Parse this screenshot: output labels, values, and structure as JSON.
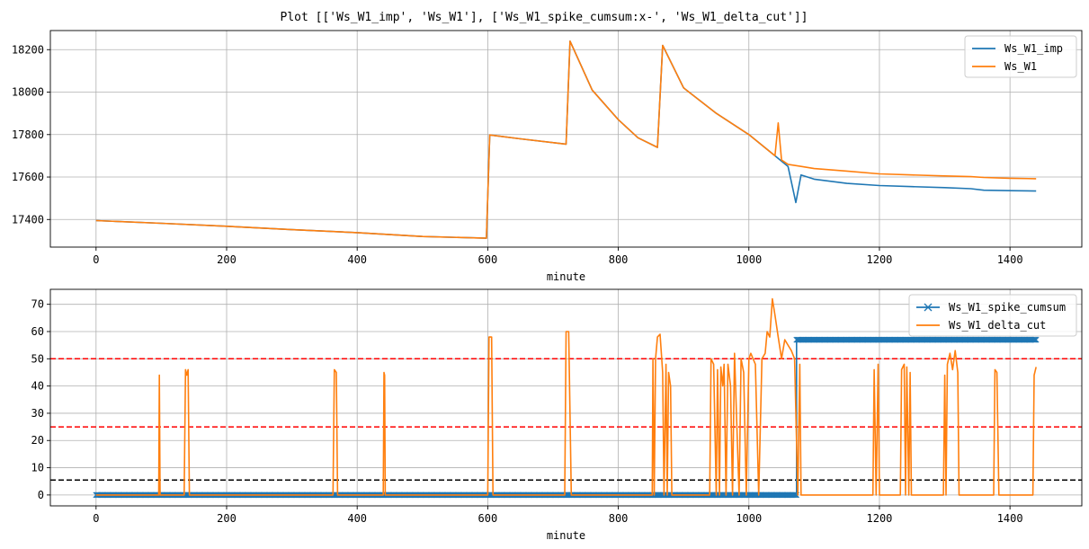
{
  "figure": {
    "title": "Plot [['Ws_W1_imp', 'Ws_W1'], ['Ws_W1_spike_cumsum:x-', 'Ws_W1_delta_cut']]"
  },
  "chart_data": [
    {
      "type": "line",
      "xlabel": "minute",
      "ylabel": "",
      "xlim": [
        -70,
        1510
      ],
      "ylim": [
        17270,
        18290
      ],
      "xticks": [
        0,
        200,
        400,
        600,
        800,
        1000,
        1200,
        1400
      ],
      "yticks": [
        17400,
        17600,
        17800,
        18000,
        18200
      ],
      "grid": true,
      "legend": "top-right",
      "series": [
        {
          "name": "Ws_W1_imp",
          "color": "#1f77b4",
          "x": [
            0,
            100,
            200,
            300,
            400,
            500,
            598,
            603,
            650,
            720,
            726,
            760,
            800,
            830,
            860,
            868,
            900,
            950,
            1000,
            1040,
            1060,
            1072,
            1080,
            1100,
            1150,
            1200,
            1250,
            1300,
            1340,
            1360,
            1400,
            1440
          ],
          "y": [
            17395,
            17382,
            17368,
            17352,
            17338,
            17320,
            17312,
            17798,
            17780,
            17755,
            18240,
            18010,
            17870,
            17785,
            17740,
            18220,
            18020,
            17900,
            17800,
            17700,
            17650,
            17480,
            17610,
            17590,
            17570,
            17560,
            17555,
            17550,
            17545,
            17538,
            17536,
            17534
          ]
        },
        {
          "name": "Ws_W1",
          "color": "#ff7f0e",
          "x": [
            0,
            100,
            200,
            300,
            400,
            500,
            598,
            603,
            650,
            720,
            726,
            760,
            800,
            830,
            860,
            868,
            900,
            950,
            1000,
            1040,
            1045,
            1050,
            1060,
            1080,
            1100,
            1150,
            1200,
            1250,
            1300,
            1340,
            1360,
            1400,
            1440
          ],
          "y": [
            17395,
            17382,
            17368,
            17352,
            17338,
            17320,
            17312,
            17798,
            17780,
            17755,
            18240,
            18010,
            17870,
            17785,
            17740,
            18220,
            18020,
            17900,
            17800,
            17700,
            17855,
            17680,
            17660,
            17650,
            17640,
            17628,
            17615,
            17610,
            17605,
            17602,
            17598,
            17594,
            17592
          ]
        }
      ]
    },
    {
      "type": "line",
      "xlabel": "minute",
      "ylabel": "",
      "xlim": [
        -70,
        1510
      ],
      "ylim": [
        -4,
        75.5
      ],
      "xticks": [
        0,
        200,
        400,
        600,
        800,
        1000,
        1200,
        1400
      ],
      "yticks": [
        0,
        10,
        20,
        30,
        40,
        50,
        60,
        70
      ],
      "grid": true,
      "legend": "top-right",
      "hlines": [
        {
          "y": 50,
          "color": "#ff0000"
        },
        {
          "y": 25,
          "color": "#ff0000"
        },
        {
          "y": 5.5,
          "color": "#000000"
        }
      ],
      "series": [
        {
          "name": "Ws_W1_spike_cumsum",
          "color": "#1f77b4",
          "marker": "x",
          "x": [
            0,
            1073,
            1073,
            1440
          ],
          "y": [
            0,
            0,
            57,
            57
          ]
        },
        {
          "name": "Ws_W1_delta_cut",
          "color": "#ff7f0e",
          "x": [
            0,
            96,
            97,
            98,
            135,
            137,
            139,
            141,
            143,
            363,
            365,
            368,
            370,
            440,
            441,
            442,
            443,
            600,
            602,
            606,
            608,
            718,
            720,
            724,
            728,
            852,
            853,
            855,
            857,
            860,
            864,
            868,
            870,
            873,
            875,
            877,
            880,
            882,
            940,
            942,
            946,
            950,
            952,
            955,
            957,
            960,
            962,
            965,
            968,
            972,
            975,
            978,
            985,
            988,
            992,
            996,
            1000,
            1003,
            1010,
            1015,
            1020,
            1025,
            1028,
            1032,
            1036,
            1040,
            1045,
            1050,
            1055,
            1060,
            1065,
            1070,
            1075,
            1078,
            1080,
            1190,
            1192,
            1195,
            1198,
            1200,
            1232,
            1234,
            1238,
            1240,
            1242,
            1245,
            1247,
            1249,
            1298,
            1300,
            1302,
            1304,
            1308,
            1312,
            1316,
            1320,
            1322,
            1375,
            1377,
            1380,
            1383,
            1435,
            1437,
            1440
          ],
          "y": [
            0,
            0,
            44,
            0,
            0,
            46,
            44,
            46,
            0,
            0,
            46,
            45,
            0,
            0,
            45,
            44,
            0,
            0,
            58,
            58,
            0,
            0,
            60,
            60,
            0,
            0,
            50,
            0,
            50,
            58,
            59,
            45,
            0,
            48,
            0,
            45,
            40,
            0,
            0,
            50,
            48,
            0,
            46,
            0,
            47,
            40,
            48,
            0,
            48,
            40,
            0,
            52,
            0,
            50,
            45,
            0,
            50,
            52,
            48,
            0,
            50,
            52,
            60,
            58,
            72,
            66,
            58,
            50,
            57,
            55,
            53,
            50,
            0,
            48,
            0,
            0,
            46,
            0,
            48,
            0,
            0,
            46,
            48,
            0,
            47,
            0,
            45,
            0,
            0,
            44,
            0,
            48,
            52,
            46,
            53,
            45,
            0,
            0,
            46,
            45,
            0,
            0,
            44,
            47
          ]
        }
      ]
    }
  ]
}
